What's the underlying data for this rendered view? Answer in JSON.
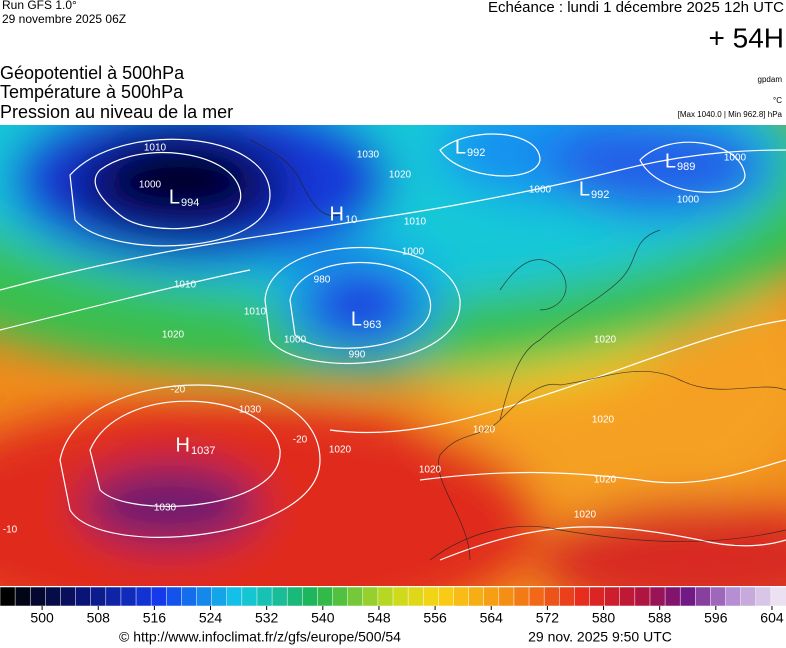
{
  "header": {
    "run": "Run GFS 1.0°",
    "run_date": "29 novembre 2025 06Z",
    "valid": "Echéance : lundi 1 décembre 2025 12h UTC",
    "lead": "+ 54H"
  },
  "titles": [
    "Géopotentiel à 500hPa",
    "Température à 500hPa",
    "Pression au niveau de la mer"
  ],
  "units": {
    "geopotential": "gpdam",
    "temperature": "°C",
    "pressure": "[Max 1040.0 | Min 962.8] hPa"
  },
  "map": {
    "centers": [
      {
        "letter": "L",
        "value": "994"
      },
      {
        "letter": "H",
        "value": "10"
      },
      {
        "letter": "L",
        "value": "963"
      },
      {
        "letter": "H",
        "value": "1037"
      },
      {
        "letter": "L",
        "value": "992"
      },
      {
        "letter": "L",
        "value": "992"
      },
      {
        "letter": "L",
        "value": "989"
      }
    ],
    "isobar_labels": [
      "1010",
      "1000",
      "1030",
      "1020",
      "1010",
      "1000",
      "1010",
      "980",
      "990",
      "1000",
      "1010",
      "1020",
      "1030",
      "1030",
      "1020",
      "1020",
      "1020",
      "1020",
      "1000",
      "1000",
      "1000",
      "1020",
      "1020",
      "1020",
      "-20",
      "-20",
      "-10"
    ]
  },
  "colorbar": {
    "range": [
      494,
      606
    ],
    "ticks": [
      500,
      508,
      516,
      524,
      532,
      540,
      548,
      556,
      564,
      572,
      580,
      588,
      596,
      604
    ]
  },
  "footer": {
    "url": "© http://www.infoclimat.fr/z/gfs/europe/500/54",
    "timestamp": "29 nov. 2025  9:50 UTC"
  }
}
